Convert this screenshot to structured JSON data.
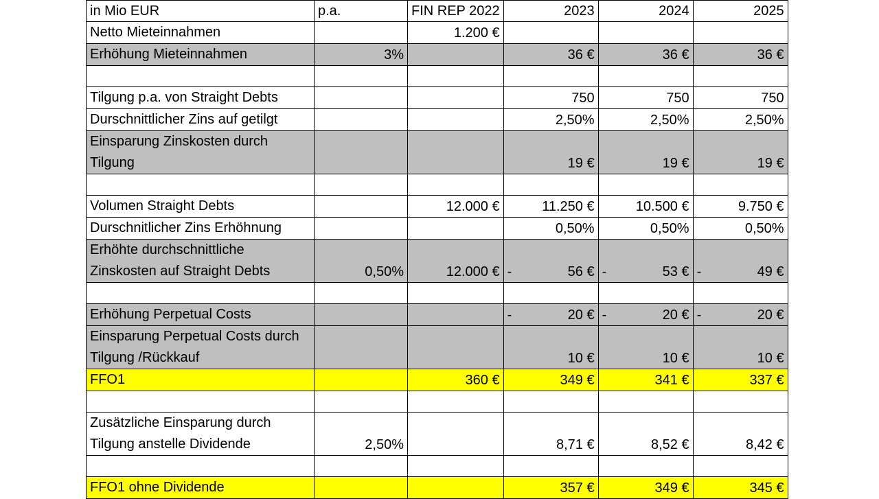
{
  "header": {
    "unit": "in Mio EUR",
    "rate": "p.a.",
    "base": "FIN REP 2022",
    "y1": "2023",
    "y2": "2024",
    "y3": "2025"
  },
  "rows": {
    "netto": {
      "label": "Netto Mieteinnahmen",
      "base": "1.200 €"
    },
    "erh_miete": {
      "label": "Erhöhung Mieteinnahmen",
      "rate": "3%",
      "y1": "36 €",
      "y2": "36 €",
      "y3": "36 €"
    },
    "tilgung": {
      "label": "Tilgung p.a. von Straight Debts",
      "y1": "750",
      "y2": "750",
      "y3": "750"
    },
    "zins_getilgt": {
      "label": "Durschnittlicher Zins auf getilgt",
      "y1": "2,50%",
      "y2": "2,50%",
      "y3": "2,50%"
    },
    "einsp_zins": {
      "label": "Einsparung Zinskosten durch Tilgung",
      "y1": "19 €",
      "y2": "19 €",
      "y3": "19 €"
    },
    "volumen": {
      "label": "Volumen Straight Debts",
      "base": "12.000 €",
      "y1": "11.250 €",
      "y2": "10.500 €",
      "y3": "9.750 €"
    },
    "zins_erh": {
      "label": "Durschnitlicher Zins Erhöhnung",
      "y1": "0,50%",
      "y2": "0,50%",
      "y3": "0,50%"
    },
    "erh_zinskosten": {
      "label": "Erhöhte durchschnittliche Zinskosten auf Straight Debts",
      "rate": "0,50%",
      "base": "12.000 €",
      "sign": "-",
      "y1": "56 €",
      "y2": "53 €",
      "y3": "49 €"
    },
    "perp_costs": {
      "label": "Erhöhung Perpetual Costs",
      "sign": "-",
      "y1": "20 €",
      "y2": "20 €",
      "y3": "20 €"
    },
    "einsp_perp": {
      "label": "Einsparung Perpetual Costs durch Tilgung /Rückkauf",
      "y1": "10 €",
      "y2": "10 €",
      "y3": "10 €"
    },
    "ffo1": {
      "label": "FFO1",
      "base": "360 €",
      "y1": "349 €",
      "y2": "341 €",
      "y3": "337 €"
    },
    "zus_einsp": {
      "label": "Zusätzliche Einsparung durch Tilgung anstelle Dividende",
      "rate": "2,50%",
      "y1": "8,71 €",
      "y2": "8,52 €",
      "y3": "8,42 €"
    },
    "ffo1_ohne": {
      "label": "FFO1 ohne Dividende",
      "y1": "357 €",
      "y2": "349 €",
      "y3": "345 €"
    }
  },
  "colors": {
    "gray_fill": "#bfbfbf",
    "yellow_fill": "#ffff00",
    "border": "#000000"
  }
}
